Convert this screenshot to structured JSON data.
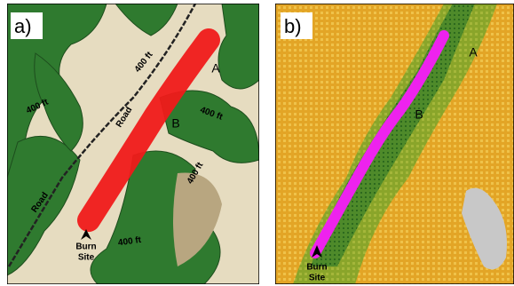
{
  "panels": [
    {
      "label": "a)",
      "annotations": {
        "contours": [
          "400 ft",
          "400 ft",
          "400 ft",
          "400 ft",
          "400 ft"
        ],
        "points": [
          "A",
          "B"
        ],
        "roads": [
          "Road",
          "Road"
        ],
        "site": [
          "Burn",
          "Site"
        ]
      }
    },
    {
      "label": "b)",
      "annotations": {
        "points": [
          "A",
          "B"
        ],
        "site": [
          "Burn",
          "Site"
        ]
      }
    }
  ]
}
